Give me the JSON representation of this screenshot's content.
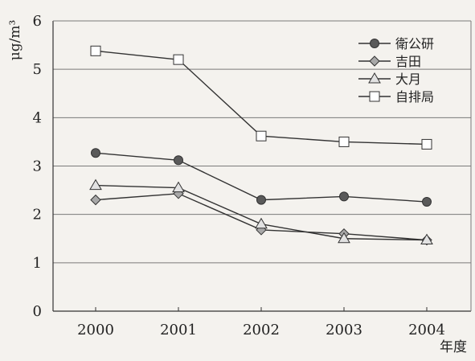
{
  "chart_data": {
    "type": "line",
    "title": "",
    "ylabel": "μg/m³",
    "xlabel": "年度",
    "x": [
      2000,
      2001,
      2002,
      2003,
      2004
    ],
    "ylim": [
      0,
      6
    ],
    "yticks": [
      0,
      1,
      2,
      3,
      4,
      5,
      6
    ],
    "grid": "horizontal",
    "legend_position": "top-right",
    "series": [
      {
        "name": "衛公研",
        "marker": "circle-filled",
        "values": [
          3.27,
          3.12,
          2.3,
          2.37,
          2.26
        ]
      },
      {
        "name": "吉田",
        "marker": "diamond",
        "values": [
          2.3,
          2.43,
          1.68,
          1.6,
          1.47
        ]
      },
      {
        "name": "大月",
        "marker": "triangle",
        "values": [
          2.6,
          2.55,
          1.8,
          1.5,
          1.47
        ]
      },
      {
        "name": "自排局",
        "marker": "square-open",
        "values": [
          5.38,
          5.2,
          3.62,
          3.5,
          3.45
        ]
      }
    ]
  }
}
